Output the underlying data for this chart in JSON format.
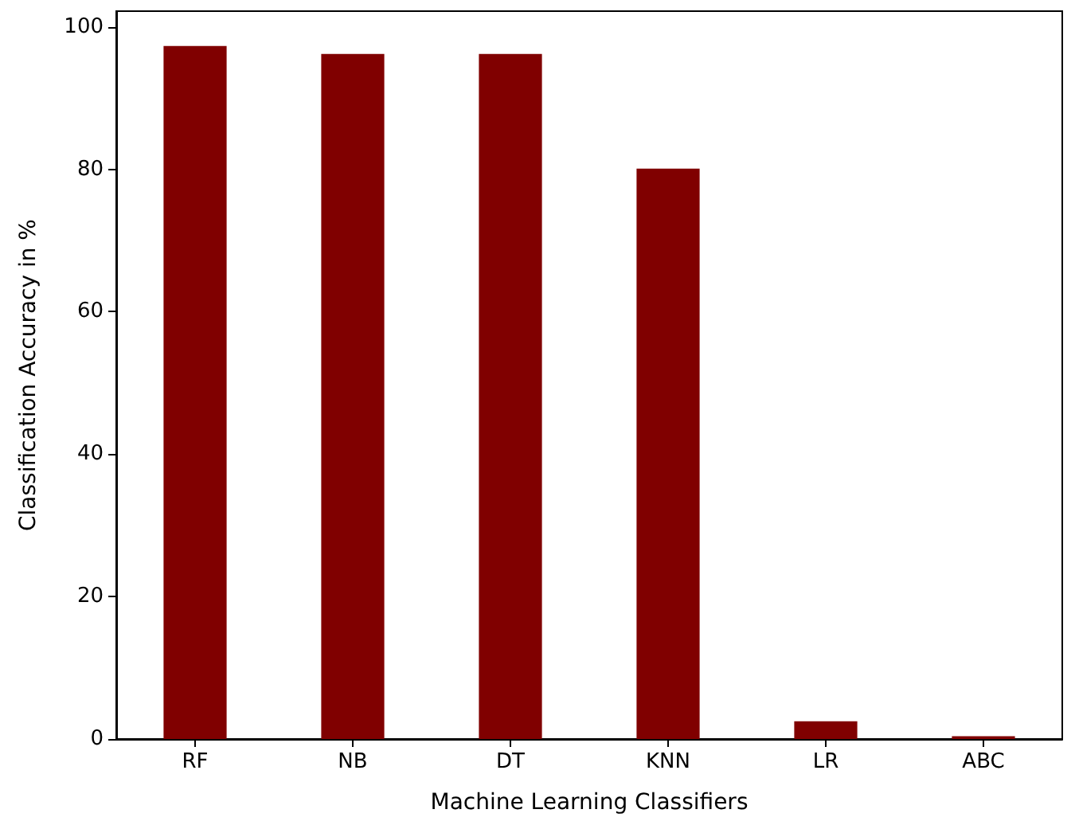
{
  "chart_data": {
    "type": "bar",
    "xlabel": "Machine Learning Classifiers",
    "ylabel": "Classification Accuracy in %",
    "categories": [
      "RF",
      "NB",
      "DT",
      "KNN",
      "LR",
      "ABC"
    ],
    "values": [
      97.3,
      96.2,
      96.2,
      80.1,
      2.5,
      0.4
    ],
    "color": "#800000",
    "ylim": [
      0,
      102.2
    ],
    "yticks": [
      0,
      20,
      40,
      60,
      80,
      100
    ],
    "grid": false
  }
}
